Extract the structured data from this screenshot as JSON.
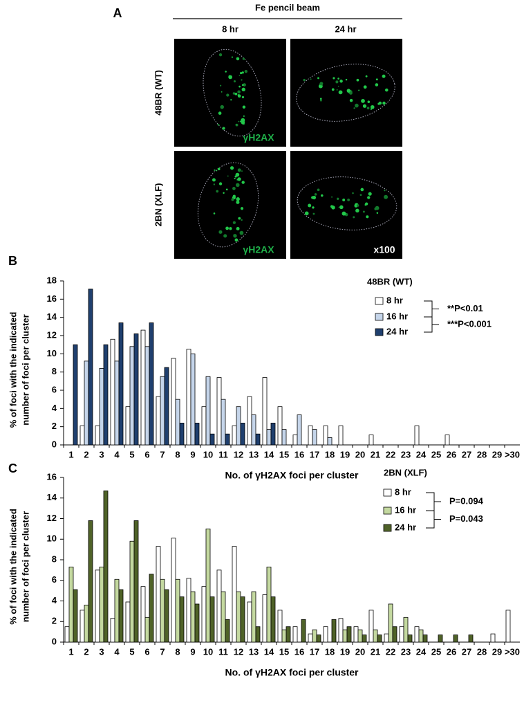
{
  "panel_a": {
    "panel": "A",
    "treatment": "Fe pencil beam",
    "columns": [
      "8 hr",
      "24 hr"
    ],
    "rows": [
      "48BR (WT)",
      "2BN (XLF)"
    ],
    "stain": "γH2AX",
    "magnification": "x100"
  },
  "chart_data": [
    {
      "type": "bar",
      "panel": "B",
      "legend_title": "48BR (WT)",
      "xlabel": "No. of γH2AX foci per cluster",
      "ylabel": [
        "% of foci with the indicated",
        "number of foci per cluster"
      ],
      "annotations": [
        "**P<0.01",
        "***P<0.001"
      ],
      "categories": [
        "1",
        "2",
        "3",
        "4",
        "5",
        "6",
        "7",
        "8",
        "9",
        "10",
        "11",
        "12",
        "13",
        "14",
        "15",
        "16",
        "17",
        "18",
        "19",
        "20",
        "21",
        "22",
        "23",
        "24",
        "25",
        "26",
        "27",
        "28",
        "29",
        ">30"
      ],
      "series": [
        {
          "name": "8 hr",
          "color": "#ffffff",
          "values": [
            0,
            2.1,
            2.1,
            11.6,
            4.2,
            12.6,
            5.3,
            9.5,
            10.5,
            4.2,
            7.4,
            2.1,
            5.3,
            7.4,
            4.2,
            1.1,
            2.1,
            2.1,
            2.1,
            0,
            1.1,
            0,
            0,
            2.1,
            0,
            1.1,
            0,
            0,
            0,
            0
          ]
        },
        {
          "name": "16 hr",
          "color": "#c5d5ea",
          "values": [
            0,
            9.2,
            8.4,
            9.2,
            10.8,
            10.8,
            7.5,
            5.0,
            10.0,
            7.5,
            5.0,
            4.2,
            3.3,
            1.7,
            1.7,
            3.3,
            1.7,
            0.8,
            0,
            0,
            0,
            0,
            0,
            0,
            0,
            0,
            0,
            0,
            0,
            0
          ]
        },
        {
          "name": "24 hr",
          "color": "#1f3f6e",
          "values": [
            11,
            17.1,
            11,
            13.4,
            12.2,
            13.4,
            8.5,
            2.4,
            2.4,
            1.2,
            1.2,
            2.4,
            1.2,
            2.4,
            0,
            0,
            0,
            0,
            0,
            0,
            0,
            0,
            0,
            0,
            0,
            0,
            0,
            0,
            0,
            0
          ]
        }
      ],
      "ylim": [
        0,
        18
      ],
      "yticks": [
        0,
        2,
        4,
        6,
        8,
        10,
        12,
        14,
        16,
        18
      ]
    },
    {
      "type": "bar",
      "panel": "C",
      "legend_title": "2BN (XLF)",
      "xlabel": "No. of γH2AX foci per cluster",
      "ylabel": [
        "% of foci with the indicated",
        "number of foci per cluster"
      ],
      "annotations": [
        "P=0.094",
        "P=0.043"
      ],
      "categories": [
        "1",
        "2",
        "3",
        "4",
        "5",
        "6",
        "7",
        "8",
        "9",
        "10",
        "11",
        "12",
        "13",
        "14",
        "15",
        "16",
        "17",
        "18",
        "19",
        "20",
        "21",
        "22",
        "23",
        "24",
        "25",
        "26",
        "27",
        "28",
        "29",
        ">30"
      ],
      "series": [
        {
          "name": "8 hr",
          "color": "#ffffff",
          "values": [
            1.5,
            3.1,
            7.0,
            2.3,
            3.9,
            5.4,
            9.3,
            10.1,
            6.2,
            5.4,
            7.0,
            9.3,
            3.9,
            4.6,
            3.1,
            1.5,
            0.8,
            1.5,
            2.3,
            1.5,
            3.1,
            0.8,
            1.5,
            1.5,
            0,
            0,
            0,
            0,
            0.8,
            3.1
          ]
        },
        {
          "name": "16 hr",
          "color": "#c4d9a0",
          "values": [
            7.3,
            3.6,
            7.3,
            6.1,
            9.8,
            2.4,
            6.1,
            6.1,
            4.9,
            11.0,
            4.9,
            4.9,
            4.9,
            7.3,
            1.2,
            0,
            1.2,
            0,
            1.2,
            1.2,
            1.2,
            3.7,
            2.4,
            1.2,
            0,
            0,
            0,
            0,
            0,
            0
          ]
        },
        {
          "name": "24 hr",
          "color": "#4f6228",
          "values": [
            5.1,
            11.8,
            14.7,
            5.1,
            11.8,
            6.6,
            5.1,
            4.4,
            3.7,
            4.4,
            2.2,
            4.4,
            1.5,
            4.4,
            1.5,
            2.2,
            0.7,
            2.2,
            1.5,
            0.7,
            0.7,
            1.5,
            0.7,
            0.7,
            0.7,
            0.7,
            0.7,
            0,
            0,
            0
          ]
        }
      ],
      "ylim": [
        0,
        16
      ],
      "yticks": [
        0,
        2,
        4,
        6,
        8,
        10,
        12,
        14,
        16
      ]
    }
  ]
}
